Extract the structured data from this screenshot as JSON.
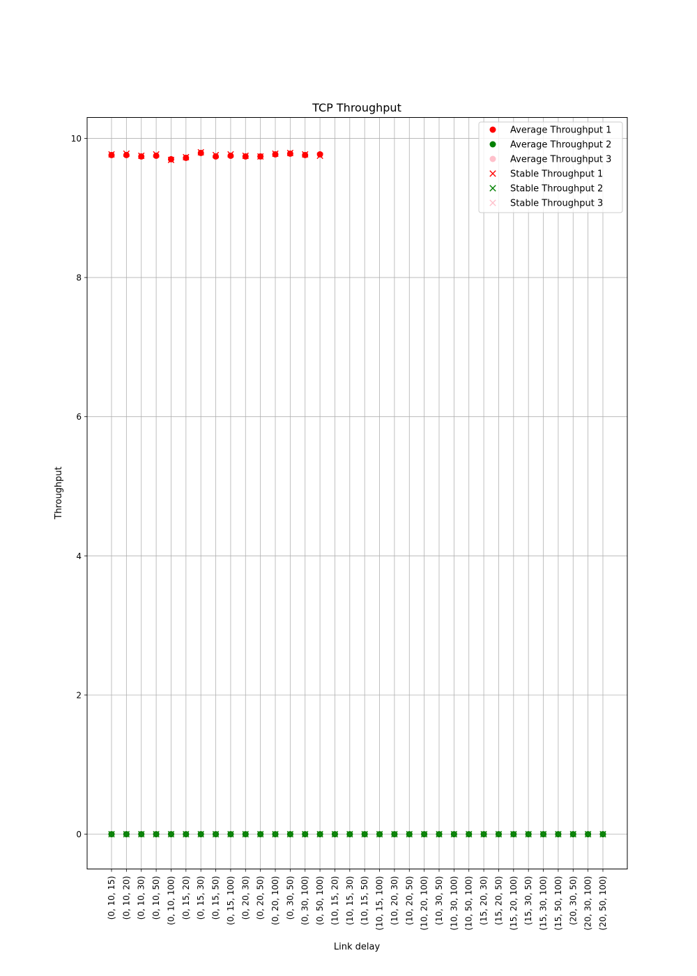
{
  "chart_data": {
    "type": "scatter",
    "title": "TCP Throughput",
    "xlabel": "Link delay",
    "ylabel": "Throughput",
    "ylim": [
      -0.5,
      10.3
    ],
    "yticks": [
      0,
      2,
      4,
      6,
      8,
      10
    ],
    "grid": true,
    "legend_position": "top-right",
    "categories": [
      "(0, 10, 15)",
      "(0, 10, 20)",
      "(0, 10, 30)",
      "(0, 10, 50)",
      "(0, 10, 100)",
      "(0, 15, 20)",
      "(0, 15, 30)",
      "(0, 15, 50)",
      "(0, 15, 100)",
      "(0, 20, 30)",
      "(0, 20, 50)",
      "(0, 20, 100)",
      "(0, 30, 50)",
      "(0, 30, 100)",
      "(0, 50, 100)",
      "(10, 15, 20)",
      "(10, 15, 30)",
      "(10, 15, 50)",
      "(10, 15, 100)",
      "(10, 20, 30)",
      "(10, 20, 50)",
      "(10, 20, 100)",
      "(10, 30, 50)",
      "(10, 30, 100)",
      "(10, 50, 100)",
      "(15, 20, 30)",
      "(15, 20, 50)",
      "(15, 20, 100)",
      "(15, 30, 50)",
      "(15, 30, 100)",
      "(15, 50, 100)",
      "(20, 30, 50)",
      "(20, 30, 100)",
      "(20, 50, 100)"
    ],
    "series": [
      {
        "name": "Average Throughput 1",
        "marker": "circle",
        "color": "#ff0000",
        "values": [
          9.76,
          9.76,
          9.74,
          9.75,
          9.7,
          9.72,
          9.79,
          9.74,
          9.75,
          9.74,
          9.74,
          9.77,
          9.78,
          9.76,
          9.77,
          null,
          null,
          null,
          null,
          null,
          null,
          null,
          null,
          null,
          null,
          null,
          null,
          null,
          null,
          null,
          null,
          null,
          null,
          null
        ]
      },
      {
        "name": "Average Throughput 2",
        "marker": "circle",
        "color": "#008000",
        "values": [
          0,
          0,
          0,
          0,
          0,
          0,
          0,
          0,
          0,
          0,
          0,
          0,
          0,
          0,
          0,
          0,
          0,
          0,
          0,
          0,
          0,
          0,
          0,
          0,
          0,
          0,
          0,
          0,
          0,
          0,
          0,
          0,
          0,
          0
        ]
      },
      {
        "name": "Average Throughput 3",
        "marker": "circle",
        "color": "#ffc0cb",
        "values": [
          0,
          0,
          0,
          0,
          0,
          0,
          0,
          0,
          0,
          0,
          0,
          0,
          0,
          0,
          0,
          0,
          0,
          0,
          0,
          0,
          0,
          0,
          0,
          0,
          0,
          0,
          0,
          0,
          0,
          0,
          0,
          0,
          0,
          0
        ]
      },
      {
        "name": "Stable Throughput 1",
        "marker": "x",
        "color": "#ff0000",
        "values": [
          9.77,
          9.78,
          9.75,
          9.77,
          9.69,
          9.73,
          9.8,
          9.76,
          9.77,
          9.75,
          9.74,
          9.78,
          9.79,
          9.77,
          9.75,
          null,
          null,
          null,
          null,
          null,
          null,
          null,
          null,
          null,
          null,
          null,
          null,
          null,
          null,
          null,
          null,
          null,
          null,
          null
        ]
      },
      {
        "name": "Stable Throughput 2",
        "marker": "x",
        "color": "#008000",
        "values": [
          0,
          0,
          0,
          0,
          0,
          0,
          0,
          0,
          0,
          0,
          0,
          0,
          0,
          0,
          0,
          0,
          0,
          0,
          0,
          0,
          0,
          0,
          0,
          0,
          0,
          0,
          0,
          0,
          0,
          0,
          0,
          0,
          0,
          0
        ]
      },
      {
        "name": "Stable Throughput 3",
        "marker": "x",
        "color": "#ffc0cb",
        "values": [
          0,
          0,
          0,
          0,
          0,
          0,
          0,
          0,
          0,
          0,
          0,
          0,
          0,
          0,
          0,
          0,
          0,
          0,
          0,
          0,
          0,
          0,
          0,
          0,
          0,
          0,
          0,
          0,
          0,
          0,
          0,
          0,
          0,
          0
        ]
      }
    ]
  }
}
